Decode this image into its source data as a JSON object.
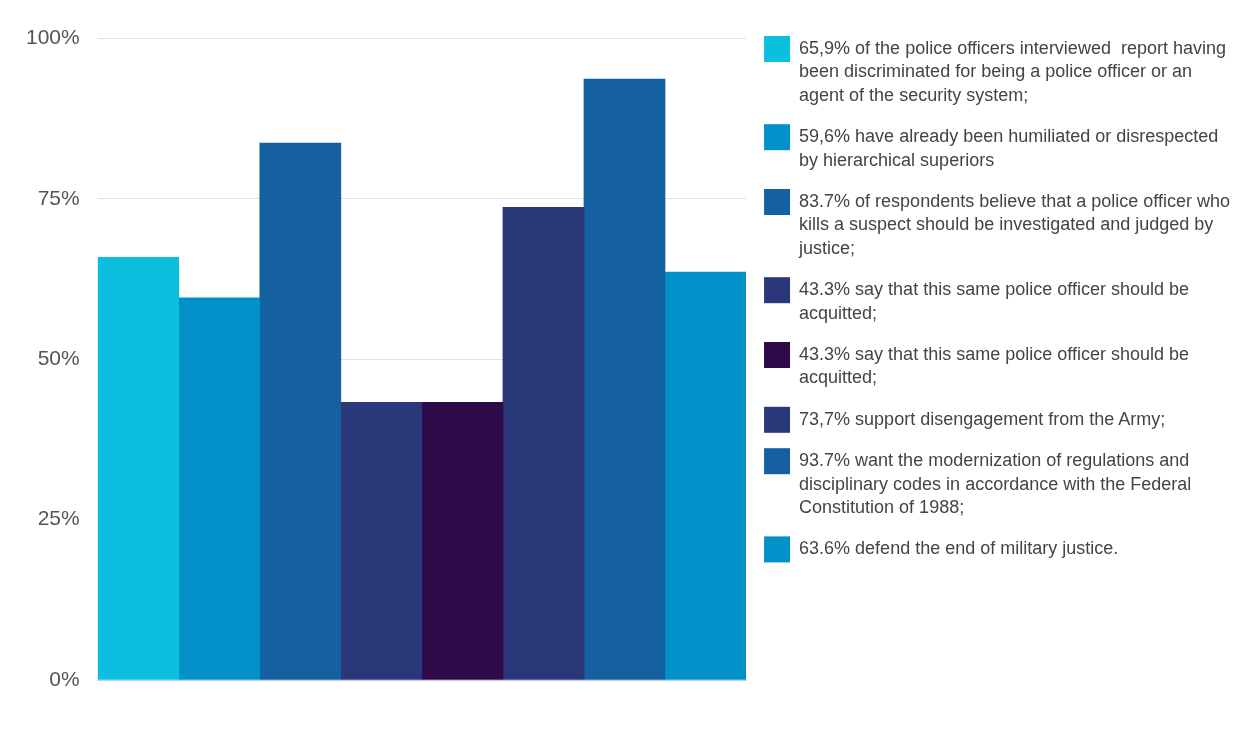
{
  "chart_data": {
    "type": "bar",
    "categories": [
      null,
      null,
      null,
      null,
      null,
      null,
      null,
      null
    ],
    "series": [
      {
        "name": "65,9% of the police officers interviewed  report having been discriminated for being a police officer or an agent of the security system;",
        "color": "#0bbfdf",
        "values": [
          65.9,
          null,
          null,
          null,
          null,
          null,
          null,
          null
        ]
      },
      {
        "name": "59,6% have already been humiliated or disrespected by hierarchical superiors",
        "color": "#0290c8",
        "values": [
          null,
          59.6,
          null,
          null,
          null,
          null,
          null,
          null
        ]
      },
      {
        "name": "83.7% of respondents believe that a police officer who kills a suspect should be investigated and judged by justice;",
        "color": "#1560a0",
        "values": [
          null,
          null,
          83.7,
          null,
          null,
          null,
          null,
          null
        ]
      },
      {
        "name": "43.3% say that this same police officer should be acquitted;",
        "color": "#2a3778",
        "values": [
          null,
          null,
          null,
          43.3,
          null,
          null,
          null,
          null
        ]
      },
      {
        "name": "43.3% say that this same police officer should be acquitted;",
        "color": "#2e0a48",
        "values": [
          null,
          null,
          null,
          null,
          43.3,
          null,
          null,
          null
        ]
      },
      {
        "name": "73,7% support disengagement from the Army;",
        "color": "#2a3778",
        "values": [
          null,
          null,
          null,
          null,
          null,
          73.7,
          null,
          null
        ]
      },
      {
        "name": "93.7% want the modernization of regulations and disciplinary codes in accordance with the Federal Constitution of 1988;",
        "color": "#1560a0",
        "values": [
          null,
          null,
          null,
          null,
          null,
          null,
          93.7,
          null
        ]
      },
      {
        "name": "63.6% defend the end of military justice.",
        "color": "#0290c8",
        "values": [
          null,
          null,
          null,
          null,
          null,
          null,
          null,
          63.6
        ]
      }
    ],
    "ylim": [
      0,
      100
    ],
    "yticks": [
      {
        "value": 0,
        "label": "0%"
      },
      {
        "value": 25,
        "label": "25%"
      },
      {
        "value": 50,
        "label": "50%"
      },
      {
        "value": 75,
        "label": "75%"
      },
      {
        "value": 100,
        "label": "100%"
      }
    ],
    "grid": "y",
    "legend": "right"
  }
}
